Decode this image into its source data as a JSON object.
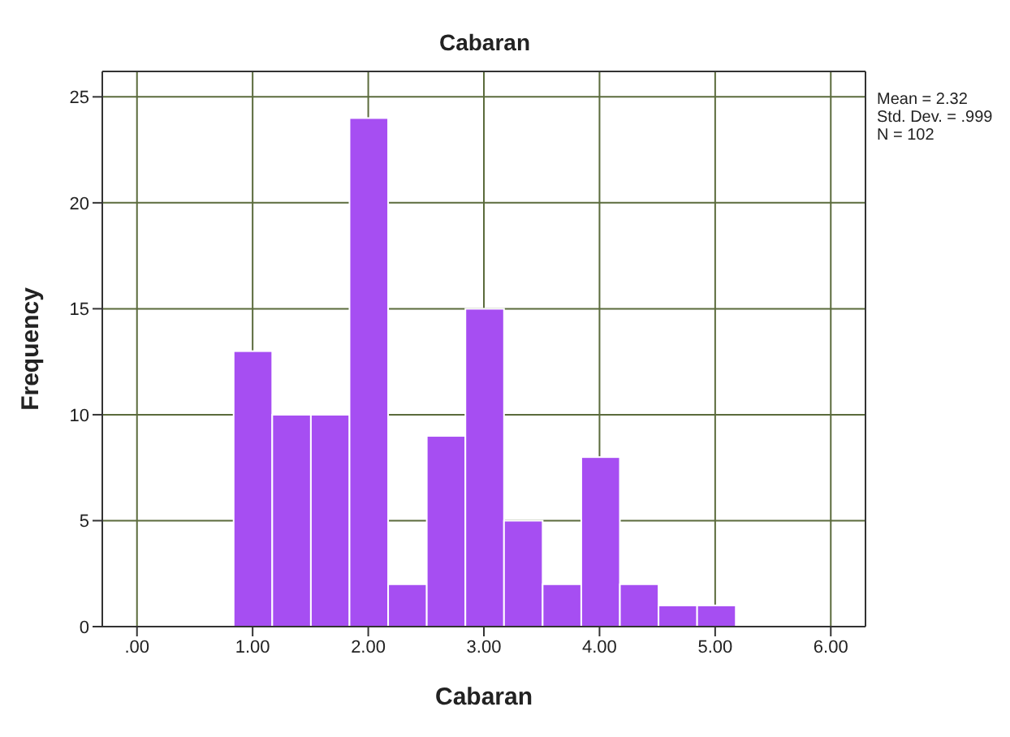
{
  "chart_data": {
    "type": "histogram",
    "title": "Cabaran",
    "xlabel": "Cabaran",
    "ylabel": "Frequency",
    "bins": [
      0.8333,
      1.1667,
      1.5,
      1.8333,
      2.1667,
      2.5,
      2.8333,
      3.1667,
      3.5,
      3.8333,
      4.1667,
      4.5,
      4.8333,
      5.1667
    ],
    "values": [
      13,
      10,
      10,
      24,
      2,
      9,
      15,
      5,
      2,
      8,
      2,
      1,
      1
    ],
    "color": "#a64ef2",
    "xlim": [
      -0.3,
      6.3
    ],
    "xticks": [
      {
        "value": 0,
        "label": ".00"
      },
      {
        "value": 1,
        "label": "1.00"
      },
      {
        "value": 2,
        "label": "2.00"
      },
      {
        "value": 3,
        "label": "3.00"
      },
      {
        "value": 4,
        "label": "4.00"
      },
      {
        "value": 5,
        "label": "5.00"
      },
      {
        "value": 6,
        "label": "6.00"
      }
    ],
    "ylim": [
      0,
      26.2
    ],
    "yticks": [
      0,
      5,
      10,
      15,
      20,
      25
    ],
    "grid": true,
    "annotations": [
      "Mean = 2.32",
      "Std. Dev. = .999",
      "N = 102"
    ]
  }
}
